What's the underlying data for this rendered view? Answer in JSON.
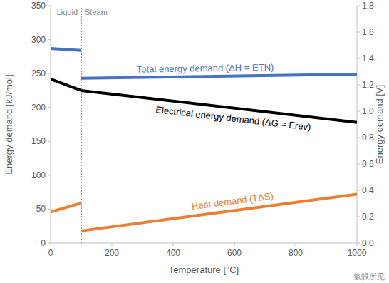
{
  "chart_data": {
    "type": "line",
    "x_label": "Temperature [°C]",
    "y_label": "Energy demand [kJ/mol]",
    "y2_label": "Energy demand [V]",
    "x": [
      0,
      100,
      100,
      100,
      1000
    ],
    "series": [
      {
        "name": "Total energy demand (ΔH = ETN)",
        "color": "#4472c4",
        "values": [
          287,
          284,
          null,
          243,
          249
        ]
      },
      {
        "name": "Electrical energy demand (ΔG = Erev)",
        "color": "#000000",
        "values": [
          242,
          225,
          null,
          225,
          178
        ]
      },
      {
        "name": "Heat demand (TΔS)",
        "color": "#ed7d31",
        "values": [
          46,
          59,
          null,
          18,
          72
        ]
      }
    ],
    "xlim": [
      0,
      1000
    ],
    "xticks": [
      0,
      200,
      400,
      600,
      800,
      1000
    ],
    "ylim": [
      0,
      350
    ],
    "yticks": [
      0,
      50,
      100,
      150,
      200,
      250,
      300,
      350
    ],
    "y2lim": [
      0,
      1.8
    ],
    "y2ticks": [
      {
        "value": 0,
        "label": "0.0"
      },
      0.2,
      0.4,
      0.6,
      0.8,
      {
        "value": 1,
        "label": "1.0"
      },
      1.2,
      1.4,
      1.6,
      1.8
    ],
    "vline": 100,
    "annotations": [
      {
        "text": "Liquid"
      },
      {
        "text": "Steam"
      }
    ],
    "watermark": "氢眼所见",
    "grid": false
  }
}
